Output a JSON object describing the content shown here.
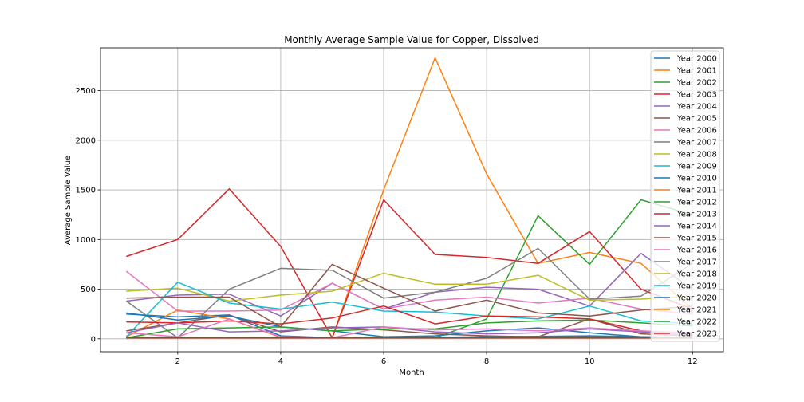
{
  "chart_data": {
    "type": "line",
    "title": "Monthly Average Sample Value for Copper, Dissolved",
    "xlabel": "Month",
    "ylabel": "Average Sample Value",
    "xlim": [
      0.5,
      12.6
    ],
    "ylim": [
      -130,
      2930
    ],
    "xticks": [
      2,
      4,
      6,
      8,
      10,
      12
    ],
    "yticks": [
      0,
      500,
      1000,
      1500,
      2000,
      2500
    ],
    "grid": true,
    "legend_position": "top-right",
    "series": [
      {
        "name": "Year 2000",
        "color": "#1f77b4",
        "x": [
          1,
          2,
          3,
          4,
          5,
          6,
          7,
          8,
          9,
          10,
          11,
          12
        ],
        "y": [
          250,
          220,
          240,
          30,
          10,
          10,
          15,
          20,
          25,
          30,
          20,
          15
        ]
      },
      {
        "name": "Year 2001",
        "color": "#ff7f0e",
        "x": [
          1,
          2,
          3,
          4,
          5,
          6,
          7,
          8,
          9,
          10,
          11,
          12
        ],
        "y": [
          20,
          290,
          200,
          15,
          10,
          1500,
          2830,
          1660,
          760,
          870,
          760,
          300
        ]
      },
      {
        "name": "Year 2002",
        "color": "#2ca02c",
        "x": [
          1,
          2,
          3,
          4,
          5,
          6,
          7,
          8,
          9,
          10,
          11,
          12
        ],
        "y": [
          10,
          10,
          10,
          10,
          10,
          10,
          10,
          200,
          1240,
          750,
          1400,
          1250
        ]
      },
      {
        "name": "Year 2003",
        "color": "#d62728",
        "x": [
          1,
          2,
          3,
          4,
          5,
          6,
          7,
          8,
          9,
          10,
          11,
          12
        ],
        "y": [
          830,
          1000,
          1510,
          930,
          10,
          1400,
          850,
          820,
          760,
          1080,
          500,
          300
        ]
      },
      {
        "name": "Year 2004",
        "color": "#9467bd",
        "x": [
          1,
          2,
          3,
          4,
          5,
          6,
          7,
          8,
          9,
          10,
          11,
          12
        ],
        "y": [
          380,
          440,
          450,
          230,
          560,
          300,
          470,
          520,
          500,
          330,
          860,
          500
        ]
      },
      {
        "name": "Year 2005",
        "color": "#8c564b",
        "x": [
          1,
          2,
          3,
          4,
          5,
          6,
          7,
          8,
          9,
          10,
          11,
          12
        ],
        "y": [
          80,
          160,
          240,
          70,
          120,
          90,
          50,
          30,
          20,
          200,
          50,
          30
        ]
      },
      {
        "name": "Year 2006",
        "color": "#e377c2",
        "x": [
          1,
          2,
          3,
          4,
          5,
          6,
          7,
          8,
          9,
          10,
          11,
          12
        ],
        "y": [
          680,
          280,
          280,
          290,
          560,
          300,
          390,
          420,
          360,
          410,
          300,
          250
        ]
      },
      {
        "name": "Year 2007",
        "color": "#7f7f7f",
        "x": [
          1,
          2,
          3,
          4,
          5,
          6,
          7,
          8,
          9,
          10,
          11,
          12
        ],
        "y": [
          380,
          10,
          500,
          710,
          690,
          410,
          470,
          610,
          910,
          400,
          430,
          760
        ]
      },
      {
        "name": "Year 2008",
        "color": "#bcbd22",
        "x": [
          1,
          2,
          3,
          4,
          5,
          6,
          7,
          8,
          9,
          10,
          11,
          12
        ],
        "y": [
          480,
          510,
          380,
          440,
          480,
          660,
          550,
          550,
          640,
          390,
          400,
          430
        ]
      },
      {
        "name": "Year 2009",
        "color": "#17becf",
        "x": [
          1,
          2,
          3,
          4,
          5,
          6,
          7,
          8,
          9,
          10,
          11,
          12
        ],
        "y": [
          20,
          570,
          360,
          300,
          370,
          280,
          270,
          230,
          200,
          330,
          180,
          150
        ]
      },
      {
        "name": "Year 2010",
        "color": "#1f77b4",
        "x": [
          1,
          2,
          3,
          4,
          5,
          6,
          7,
          8,
          9,
          10,
          11,
          12
        ],
        "y": [
          260,
          190,
          230,
          120,
          80,
          20,
          30,
          80,
          110,
          60,
          20,
          10
        ]
      },
      {
        "name": "Year 2011",
        "color": "#ff7f0e",
        "x": [
          1,
          2,
          3,
          4,
          5,
          6,
          7,
          8,
          9,
          10,
          11,
          12
        ],
        "y": [
          10,
          10,
          10,
          10,
          10,
          10,
          10,
          10,
          10,
          10,
          10,
          10
        ]
      },
      {
        "name": "Year 2012",
        "color": "#2ca02c",
        "x": [
          1,
          2,
          3,
          4,
          5,
          6,
          7,
          8,
          9,
          10,
          11,
          12
        ],
        "y": [
          10,
          100,
          110,
          120,
          80,
          100,
          100,
          160,
          180,
          190,
          160,
          130
        ]
      },
      {
        "name": "Year 2013",
        "color": "#d62728",
        "x": [
          1,
          2,
          3,
          4,
          5,
          6,
          7,
          8,
          9,
          10,
          11,
          12
        ],
        "y": [
          170,
          160,
          180,
          150,
          210,
          330,
          150,
          230,
          220,
          200,
          80,
          50
        ]
      },
      {
        "name": "Year 2014",
        "color": "#9467bd",
        "x": [
          1,
          2,
          3,
          4,
          5,
          6,
          7,
          8,
          9,
          10,
          11,
          12
        ],
        "y": [
          60,
          160,
          70,
          80,
          110,
          120,
          70,
          50,
          60,
          100,
          70,
          40
        ]
      },
      {
        "name": "Year 2015",
        "color": "#8c564b",
        "x": [
          1,
          2,
          3,
          4,
          5,
          6,
          7,
          8,
          9,
          10,
          11,
          12
        ],
        "y": [
          410,
          420,
          420,
          120,
          750,
          510,
          280,
          390,
          260,
          230,
          290,
          330
        ]
      },
      {
        "name": "Year 2016",
        "color": "#e377c2",
        "x": [
          1,
          2,
          3,
          4,
          5,
          6,
          7,
          8,
          9,
          10,
          11,
          12
        ],
        "y": [
          60,
          20,
          200,
          20,
          10,
          120,
          90,
          100,
          80,
          110,
          80,
          60
        ]
      },
      {
        "name": "Year 2017",
        "color": "#7f7f7f",
        "x": [
          1,
          2,
          3,
          4,
          5,
          6,
          7,
          8,
          9,
          10,
          11,
          12
        ],
        "y": [
          10,
          10,
          10,
          10,
          10,
          10,
          10,
          10,
          10,
          10,
          10,
          10
        ]
      },
      {
        "name": "Year 2018",
        "color": "#bcbd22",
        "x": [
          1,
          2,
          3,
          4,
          5,
          6,
          7,
          8,
          9,
          10,
          11,
          12
        ],
        "y": [
          10,
          10,
          10,
          10,
          10,
          10,
          10,
          10,
          10,
          10,
          10,
          10
        ]
      },
      {
        "name": "Year 2019",
        "color": "#17becf",
        "x": [
          1,
          2,
          3,
          4,
          5,
          6,
          7,
          8,
          9,
          10,
          11,
          12
        ],
        "y": [
          10,
          10,
          10,
          10,
          10,
          10,
          10,
          10,
          10,
          10,
          10,
          10
        ]
      },
      {
        "name": "Year 2020",
        "color": "#1f77b4",
        "x": [
          1,
          2,
          3,
          4,
          5,
          6,
          7,
          8,
          9,
          10,
          11,
          12
        ],
        "y": [
          10,
          10,
          10,
          10,
          10,
          10,
          10,
          10,
          10,
          10,
          10,
          10
        ]
      },
      {
        "name": "Year 2021",
        "color": "#ff7f0e",
        "x": [
          1,
          2,
          3,
          4,
          5,
          6,
          7,
          8,
          9,
          10,
          11,
          12
        ],
        "y": [
          10,
          10,
          10,
          10,
          10,
          10,
          10,
          10,
          10,
          10,
          10,
          10
        ]
      },
      {
        "name": "Year 2022",
        "color": "#2ca02c",
        "x": [
          1,
          2,
          3,
          4,
          5,
          6,
          7,
          8,
          9,
          10,
          11,
          12
        ],
        "y": [
          10,
          10,
          10,
          10,
          10,
          10,
          10,
          10,
          10,
          10,
          10,
          10
        ]
      },
      {
        "name": "Year 2023",
        "color": "#d62728",
        "x": [
          1,
          2,
          3,
          4,
          5,
          6,
          7,
          8,
          9,
          10,
          11,
          12
        ],
        "y": [
          10,
          10,
          10,
          10,
          10,
          10,
          10,
          10,
          10,
          10,
          10,
          10
        ]
      }
    ]
  }
}
